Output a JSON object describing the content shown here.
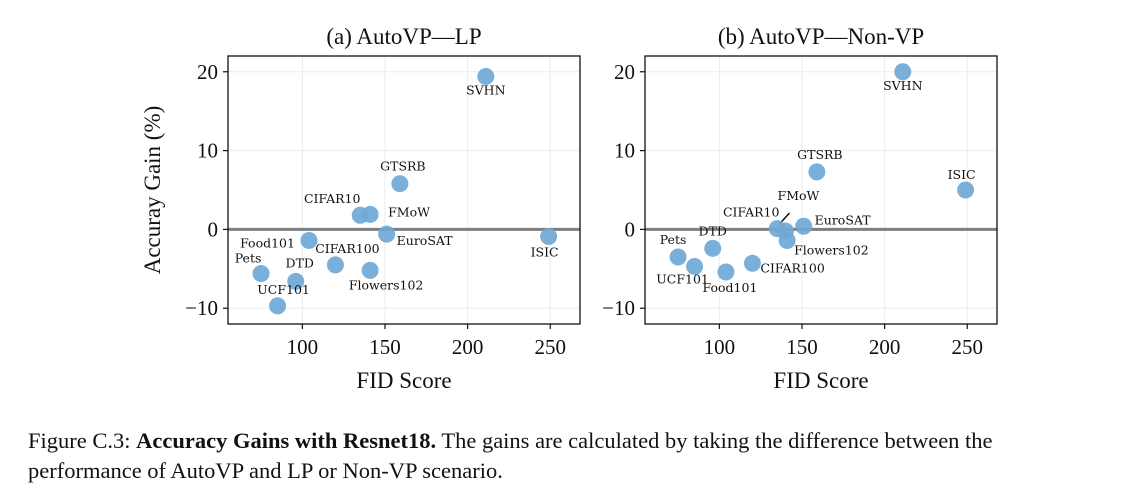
{
  "chart_data": [
    {
      "type": "scatter",
      "title": "(a) AutoVP—LP",
      "xlabel": "FID Score",
      "ylabel": "Accuray Gain (%)",
      "xlim": [
        55,
        268
      ],
      "ylim": [
        -12,
        22
      ],
      "xticks": [
        100,
        150,
        200,
        250
      ],
      "yticks": [
        -10,
        0,
        10,
        20
      ],
      "grid": true,
      "baseline": 0,
      "color": "#6fa8d6",
      "points": [
        {
          "label": "SVHN",
          "x": 211,
          "y": 19.4
        },
        {
          "label": "GTSRB",
          "x": 159,
          "y": 5.8
        },
        {
          "label": "CIFAR10",
          "x": 135,
          "y": 1.8
        },
        {
          "label": "FMoW",
          "x": 141,
          "y": 1.9
        },
        {
          "label": "EuroSAT",
          "x": 151,
          "y": -0.6
        },
        {
          "label": "Food101",
          "x": 104,
          "y": -1.4
        },
        {
          "label": "ISIC",
          "x": 249,
          "y": -0.9
        },
        {
          "label": "CIFAR100",
          "x": 120,
          "y": -4.5
        },
        {
          "label": "Flowers102",
          "x": 141,
          "y": -5.2
        },
        {
          "label": "Pets",
          "x": 75,
          "y": -5.6
        },
        {
          "label": "DTD",
          "x": 96,
          "y": -6.6
        },
        {
          "label": "UCF101",
          "x": 85,
          "y": -9.7
        }
      ]
    },
    {
      "type": "scatter",
      "title": "(b) AutoVP—Non-VP",
      "xlabel": "FID Score",
      "ylabel": "",
      "xlim": [
        55,
        268
      ],
      "ylim": [
        -12,
        22
      ],
      "xticks": [
        100,
        150,
        200,
        250
      ],
      "yticks": [
        -10,
        0,
        10,
        20
      ],
      "grid": true,
      "baseline": 0,
      "color": "#6fa8d6",
      "points": [
        {
          "label": "SVHN",
          "x": 211,
          "y": 20.0
        },
        {
          "label": "GTSRB",
          "x": 159,
          "y": 7.3
        },
        {
          "label": "ISIC",
          "x": 249,
          "y": 5.0
        },
        {
          "label": "CIFAR10",
          "x": 135,
          "y": 0.1
        },
        {
          "label": "FMoW",
          "x": 140,
          "y": -0.2
        },
        {
          "label": "EuroSAT",
          "x": 151,
          "y": 0.4
        },
        {
          "label": "Flowers102",
          "x": 141,
          "y": -1.4
        },
        {
          "label": "DTD",
          "x": 96,
          "y": -2.4
        },
        {
          "label": "Pets",
          "x": 75,
          "y": -3.5
        },
        {
          "label": "UCF101",
          "x": 85,
          "y": -4.7
        },
        {
          "label": "Food101",
          "x": 104,
          "y": -5.4
        },
        {
          "label": "CIFAR100",
          "x": 120,
          "y": -4.3
        }
      ]
    }
  ],
  "caption": {
    "label": "Figure C.3:",
    "title": "Accuracy Gains with Resnet18.",
    "text": "The gains are calculated by taking the difference between the performance of AutoVP and LP or Non-VP scenario."
  }
}
